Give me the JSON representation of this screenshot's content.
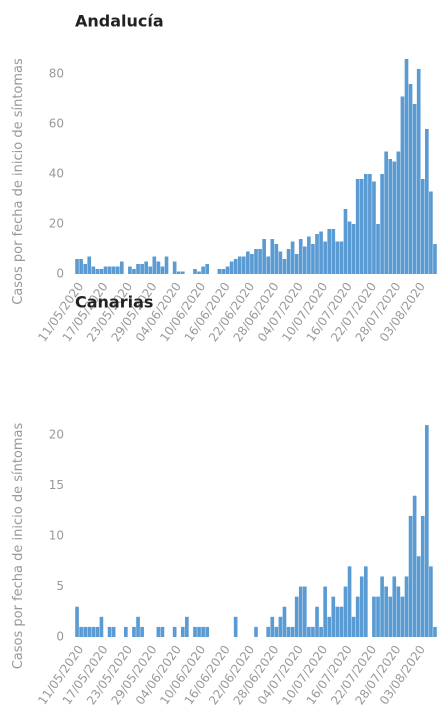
{
  "chart_data": [
    {
      "type": "bar",
      "title": "Andalucía",
      "y_label": "Casos por fecha de inicio de síntomas",
      "categories": [
        "11/05/2020",
        null,
        null,
        null,
        null,
        null,
        "17/05/2020",
        null,
        null,
        null,
        null,
        null,
        "23/05/2020",
        null,
        null,
        null,
        null,
        null,
        "29/05/2020",
        null,
        null,
        null,
        null,
        null,
        "04/06/2020",
        null,
        null,
        null,
        null,
        null,
        "10/06/2020",
        null,
        null,
        null,
        null,
        null,
        "16/06/2020",
        null,
        null,
        null,
        null,
        null,
        "22/06/2020",
        null,
        null,
        null,
        null,
        null,
        "28/06/2020",
        null,
        null,
        null,
        null,
        null,
        "04/07/2020",
        null,
        null,
        null,
        null,
        null,
        "10/07/2020",
        null,
        null,
        null,
        null,
        null,
        "16/07/2020",
        null,
        null,
        null,
        null,
        null,
        "22/07/2020",
        null,
        null,
        null,
        null,
        null,
        "28/07/2020",
        null,
        null,
        null,
        null,
        null,
        "03/08/2020",
        null,
        null,
        null,
        null
      ],
      "values": [
        6,
        6,
        4,
        7,
        3,
        2,
        2,
        3,
        3,
        3,
        3,
        5,
        0,
        3,
        2,
        4,
        4,
        5,
        3,
        7,
        5,
        3,
        7,
        0,
        5,
        1,
        1,
        0,
        0,
        2,
        1,
        3,
        4,
        0,
        0,
        2,
        2,
        3,
        5,
        6,
        7,
        7,
        9,
        8,
        10,
        10,
        14,
        7,
        14,
        12,
        9,
        6,
        10,
        13,
        8,
        14,
        11,
        15,
        12,
        16,
        17,
        13,
        18,
        18,
        13,
        13,
        26,
        21,
        20,
        38,
        38,
        40,
        40,
        37,
        20,
        40,
        49,
        46,
        45,
        49,
        71,
        86,
        76,
        68,
        82,
        38,
        58,
        33,
        12
      ],
      "color": "#5b9bd3",
      "ylim": [
        0,
        90
      ],
      "yticks": [
        0,
        20,
        40,
        60,
        80
      ]
    },
    {
      "type": "bar",
      "title": "Canarias",
      "y_label": "Casos por fecha de inicio de síntomas",
      "categories": [
        "11/05/2020",
        null,
        null,
        null,
        null,
        null,
        "17/05/2020",
        null,
        null,
        null,
        null,
        null,
        "23/05/2020",
        null,
        null,
        null,
        null,
        null,
        "29/05/2020",
        null,
        null,
        null,
        null,
        null,
        "04/06/2020",
        null,
        null,
        null,
        null,
        null,
        "10/06/2020",
        null,
        null,
        null,
        null,
        null,
        "16/06/2020",
        null,
        null,
        null,
        null,
        null,
        "22/06/2020",
        null,
        null,
        null,
        null,
        null,
        "28/06/2020",
        null,
        null,
        null,
        null,
        null,
        "04/07/2020",
        null,
        null,
        null,
        null,
        null,
        "10/07/2020",
        null,
        null,
        null,
        null,
        null,
        "16/07/2020",
        null,
        null,
        null,
        null,
        null,
        "22/07/2020",
        null,
        null,
        null,
        null,
        null,
        "28/07/2020",
        null,
        null,
        null,
        null,
        null,
        "03/08/2020",
        null,
        null,
        null,
        null
      ],
      "values": [
        3,
        1,
        1,
        1,
        1,
        1,
        2,
        0,
        1,
        1,
        0,
        0,
        1,
        0,
        1,
        2,
        1,
        0,
        0,
        0,
        1,
        1,
        0,
        0,
        1,
        0,
        1,
        2,
        0,
        1,
        1,
        1,
        1,
        0,
        0,
        0,
        0,
        0,
        0,
        2,
        0,
        0,
        0,
        0,
        1,
        0,
        0,
        1,
        2,
        1,
        2,
        3,
        1,
        1,
        4,
        5,
        5,
        1,
        1,
        3,
        1,
        5,
        2,
        4,
        3,
        3,
        5,
        7,
        2,
        4,
        6,
        7,
        0,
        4,
        4,
        6,
        5,
        4,
        6,
        5,
        4,
        6,
        12,
        14,
        8,
        12,
        21,
        7,
        1
      ],
      "color": "#5b9bd3",
      "ylim": [
        0,
        22
      ],
      "yticks": [
        0,
        5,
        10,
        15,
        20
      ]
    }
  ]
}
